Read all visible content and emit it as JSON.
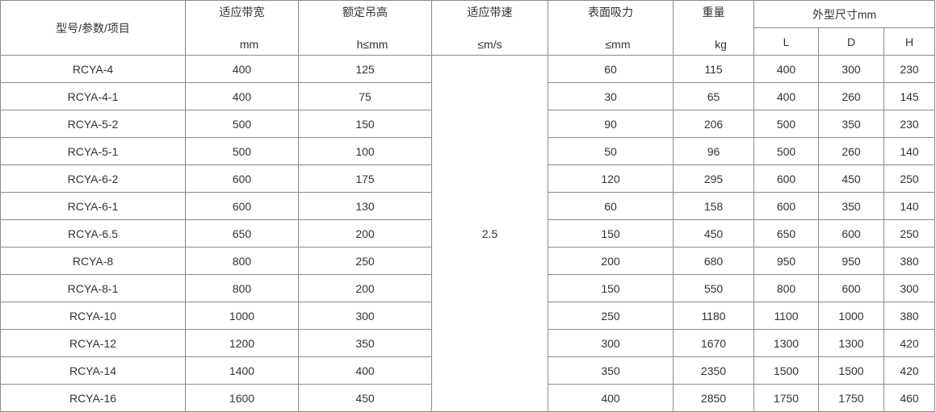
{
  "headers": {
    "model": "型号/参数/项目",
    "belt_width": {
      "label": "适应带宽",
      "unit": "mm"
    },
    "lift_height": {
      "label": "额定吊高",
      "unit": "h≤mm"
    },
    "belt_speed": {
      "label": "适应带速",
      "unit": "≤m/s"
    },
    "surface_force": {
      "label": "表面吸力",
      "unit": "≤mm"
    },
    "weight": {
      "label": "重量",
      "unit": "kg"
    },
    "dimensions": {
      "label": "外型尺寸mm",
      "L": "L",
      "D": "D",
      "H": "H"
    }
  },
  "belt_speed_value": "2.5",
  "rows": [
    {
      "model": "RCYA-4",
      "width": "400",
      "height": "125",
      "force": "60",
      "weight": "115",
      "L": "400",
      "D": "300",
      "H": "230"
    },
    {
      "model": "RCYA-4-1",
      "width": "400",
      "height": "75",
      "force": "30",
      "weight": "65",
      "L": "400",
      "D": "260",
      "H": "145"
    },
    {
      "model": "RCYA-5-2",
      "width": "500",
      "height": "150",
      "force": "90",
      "weight": "206",
      "L": "500",
      "D": "350",
      "H": "230"
    },
    {
      "model": "RCYA-5-1",
      "width": "500",
      "height": "100",
      "force": "50",
      "weight": "96",
      "L": "500",
      "D": "260",
      "H": "140"
    },
    {
      "model": "RCYA-6-2",
      "width": "600",
      "height": "175",
      "force": "120",
      "weight": "295",
      "L": "600",
      "D": "450",
      "H": "250"
    },
    {
      "model": "RCYA-6-1",
      "width": "600",
      "height": "130",
      "force": "60",
      "weight": "158",
      "L": "600",
      "D": "350",
      "H": "140"
    },
    {
      "model": "RCYA-6.5",
      "width": "650",
      "height": "200",
      "force": "150",
      "weight": "450",
      "L": "650",
      "D": "600",
      "H": "250"
    },
    {
      "model": "RCYA-8",
      "width": "800",
      "height": "250",
      "force": "200",
      "weight": "680",
      "L": "950",
      "D": "950",
      "H": "380"
    },
    {
      "model": "RCYA-8-1",
      "width": "800",
      "height": "200",
      "force": "150",
      "weight": "550",
      "L": "800",
      "D": "600",
      "H": "300"
    },
    {
      "model": "RCYA-10",
      "width": "1000",
      "height": "300",
      "force": "250",
      "weight": "1180",
      "L": "1100",
      "D": "1000",
      "H": "380"
    },
    {
      "model": "RCYA-12",
      "width": "1200",
      "height": "350",
      "force": "300",
      "weight": "1670",
      "L": "1300",
      "D": "1300",
      "H": "420"
    },
    {
      "model": "RCYA-14",
      "width": "1400",
      "height": "400",
      "force": "350",
      "weight": "2350",
      "L": "1500",
      "D": "1500",
      "H": "420"
    },
    {
      "model": "RCYA-16",
      "width": "1600",
      "height": "450",
      "force": "400",
      "weight": "2850",
      "L": "1750",
      "D": "1750",
      "H": "460"
    }
  ]
}
